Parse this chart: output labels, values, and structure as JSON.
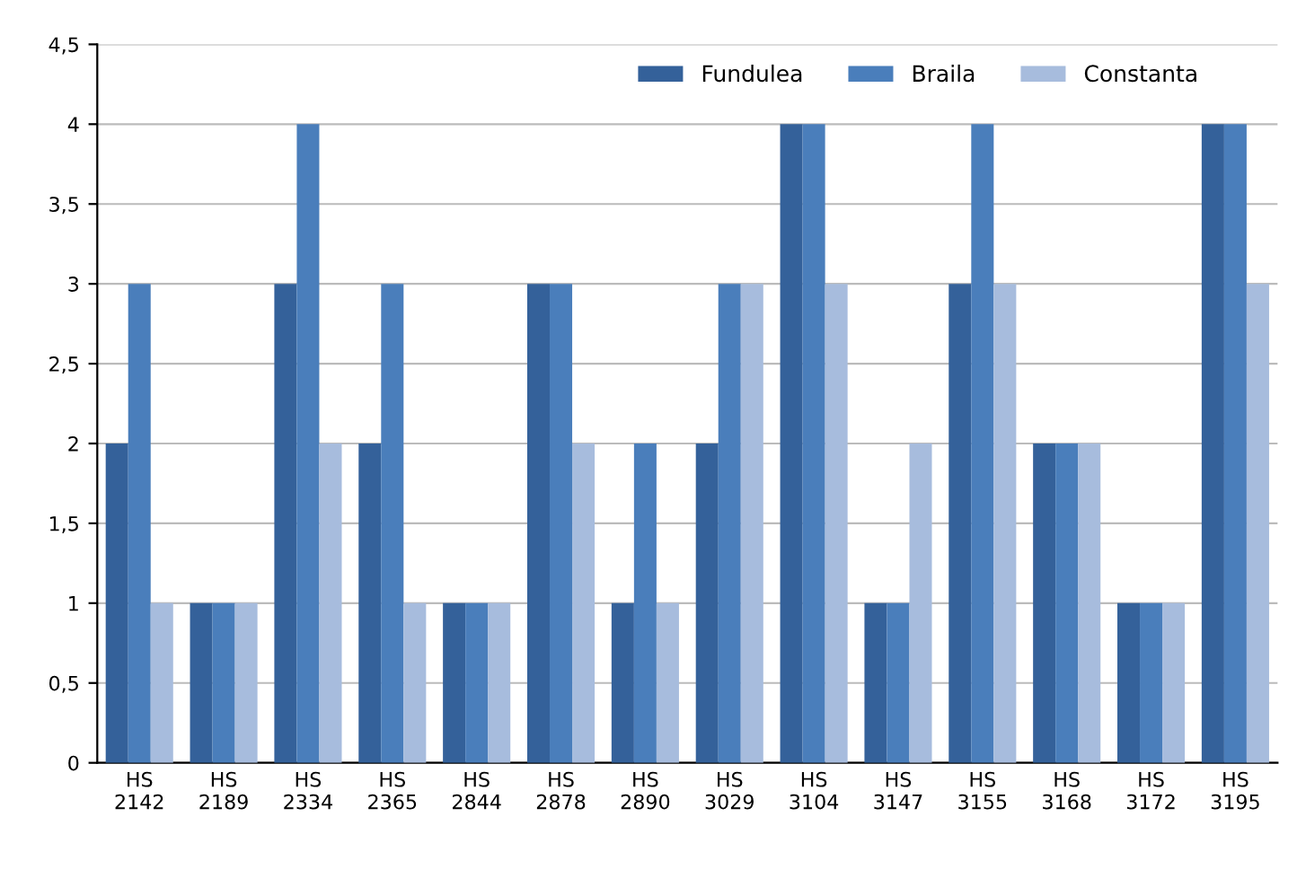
{
  "chart_data": {
    "type": "bar",
    "categories": [
      "HS\n2142",
      "HS\n2189",
      "HS\n2334",
      "HS\n2365",
      "HS\n2844",
      "HS\n2878",
      "HS\n2890",
      "HS\n3029",
      "HS\n3104",
      "HS\n3147",
      "HS\n3155",
      "HS\n3168",
      "HS\n3172",
      "HS\n3195"
    ],
    "series": [
      {
        "name": "Fundulea",
        "color": "#34619a",
        "values": [
          2,
          1,
          3,
          2,
          1,
          3,
          1,
          2,
          4,
          1,
          3,
          2,
          1,
          4
        ]
      },
      {
        "name": "Braila",
        "color": "#4a7ebb",
        "values": [
          3,
          1,
          4,
          3,
          1,
          3,
          2,
          3,
          4,
          1,
          4,
          2,
          1,
          4
        ]
      },
      {
        "name": "Constanta",
        "color": "#a7bcdd",
        "values": [
          1,
          1,
          2,
          1,
          1,
          2,
          1,
          3,
          3,
          2,
          3,
          2,
          1,
          3
        ]
      }
    ],
    "ylim": [
      0,
      4.5
    ],
    "yticks": [
      {
        "value": 0,
        "label": "0"
      },
      {
        "value": 0.5,
        "label": "0,5"
      },
      {
        "value": 1,
        "label": "1"
      },
      {
        "value": 1.5,
        "label": "1,5"
      },
      {
        "value": 2,
        "label": "2"
      },
      {
        "value": 2.5,
        "label": "2,5"
      },
      {
        "value": 3,
        "label": "3"
      },
      {
        "value": 3.5,
        "label": "3,5"
      },
      {
        "value": 4,
        "label": "4"
      },
      {
        "value": 4.5,
        "label": "4,5"
      }
    ],
    "grid": "y",
    "legend": "top right"
  }
}
